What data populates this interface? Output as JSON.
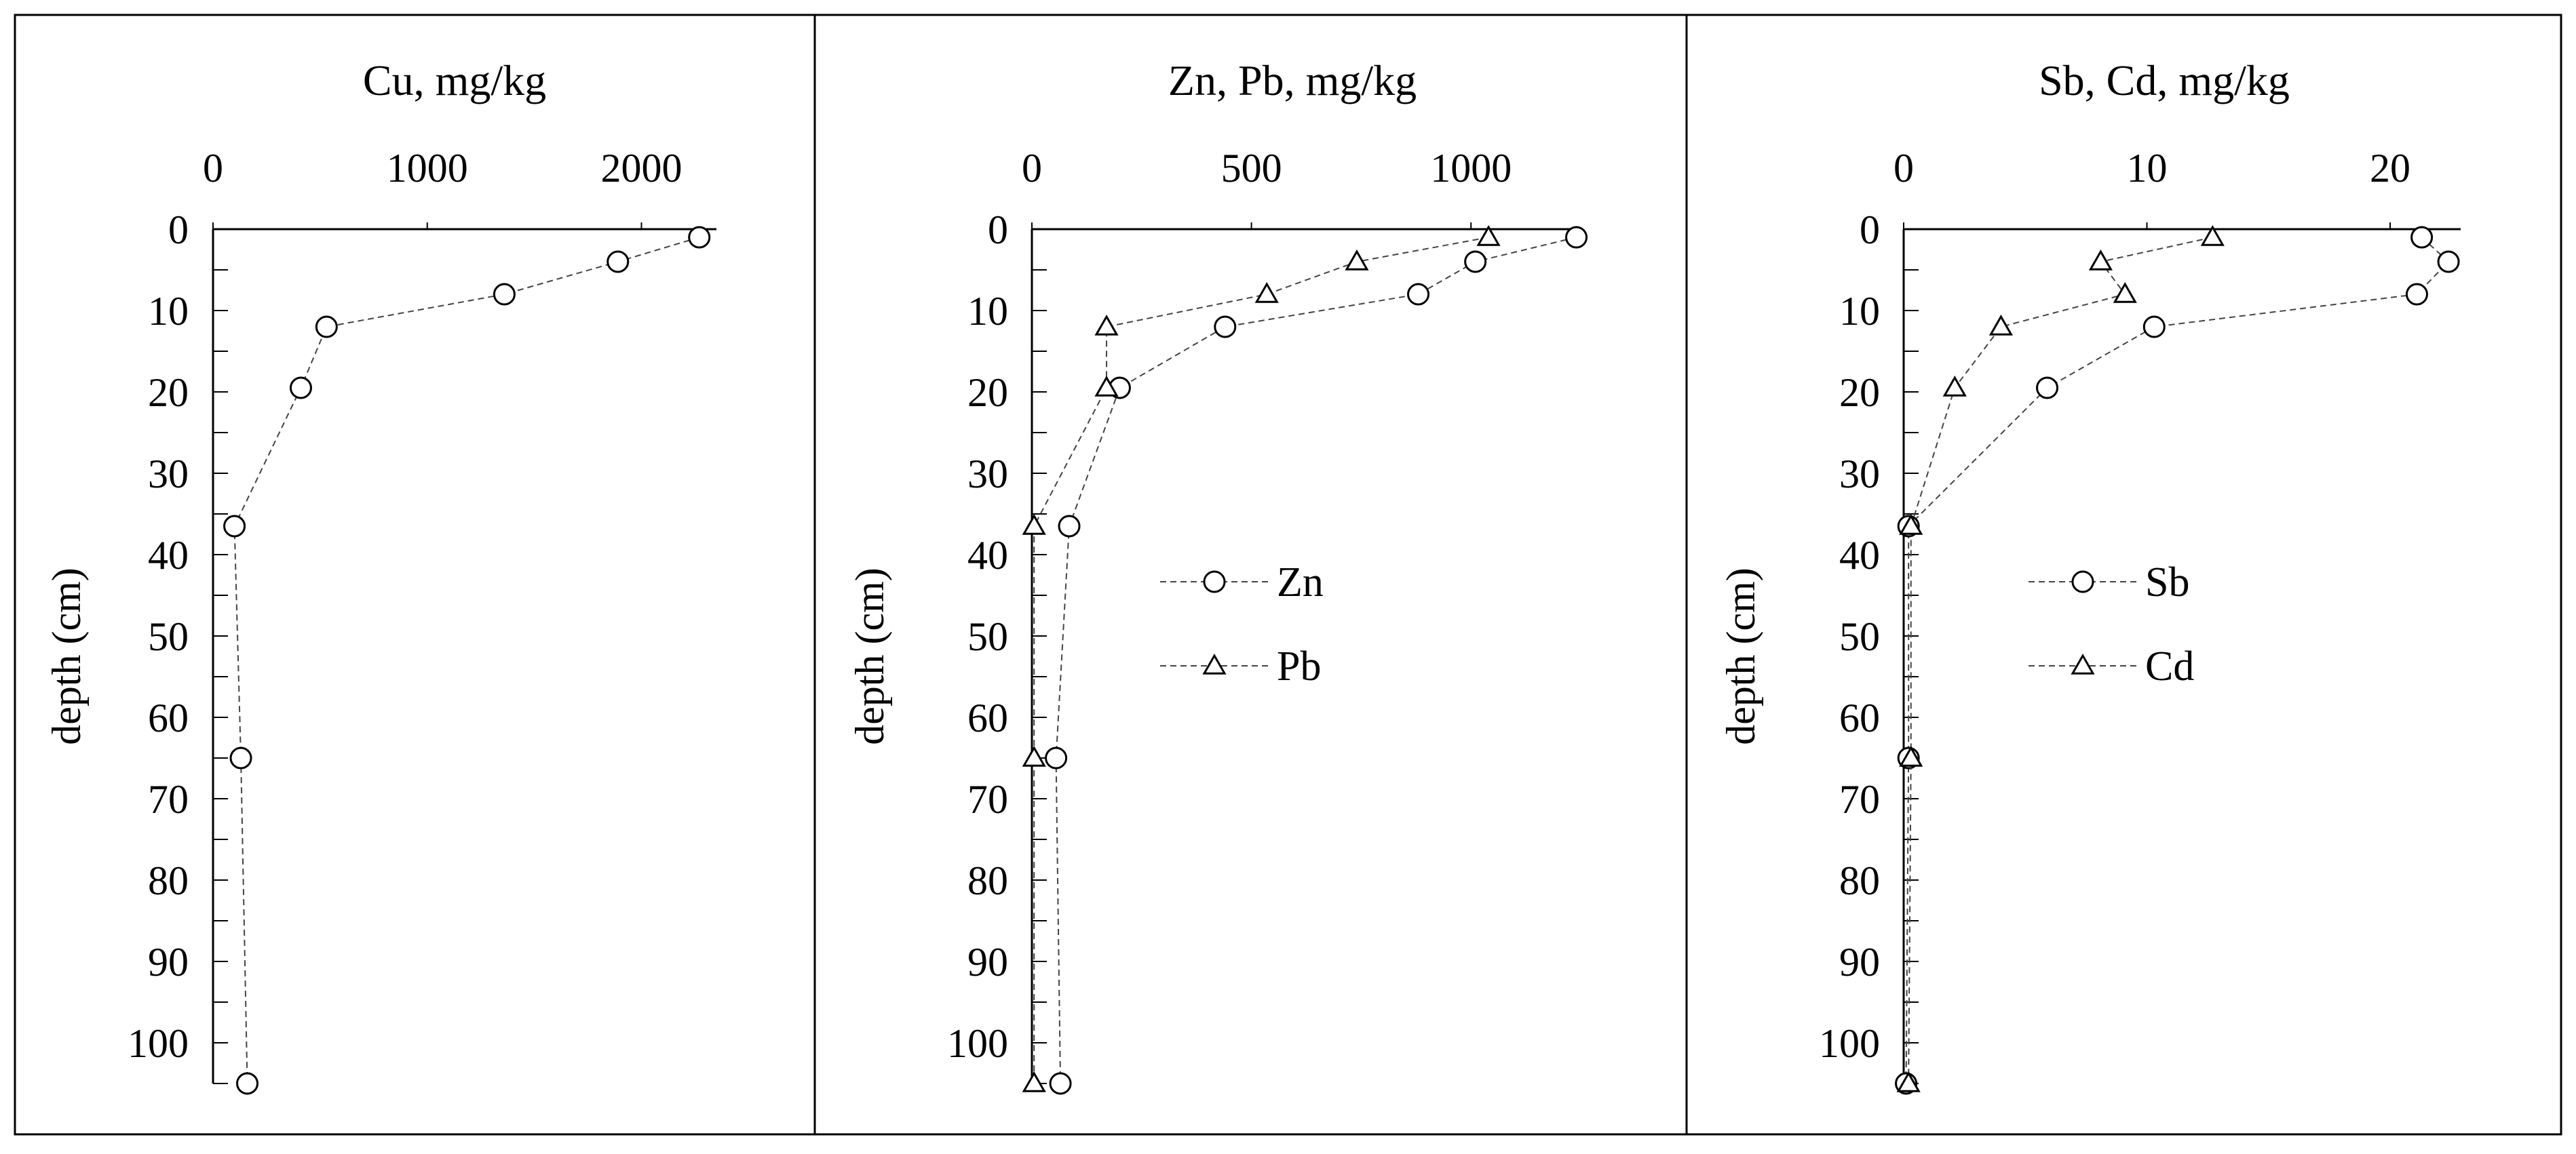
{
  "chart_data": [
    {
      "type": "line",
      "title": "Cu, mg/kg",
      "xlabel": "Cu, mg/kg",
      "ylabel": "depth (cm)",
      "xlim": [
        0,
        2350
      ],
      "ylim": [
        0,
        105
      ],
      "xticks": [
        0,
        1000,
        2000
      ],
      "yticks": [
        0,
        10,
        20,
        30,
        40,
        50,
        60,
        70,
        80,
        90,
        100
      ],
      "x_axis_position": "top",
      "y_reversed": true,
      "grid": false,
      "legend": null,
      "series": [
        {
          "marker": "circle",
          "points": [
            [
              2270,
              1
            ],
            [
              1890,
              4
            ],
            [
              1360,
              8
            ],
            [
              530,
              12
            ],
            [
              410,
              19.5
            ],
            [
              100,
              36.5
            ],
            [
              130,
              65
            ],
            [
              160,
              105
            ]
          ]
        }
      ]
    },
    {
      "type": "line",
      "title": "Zn, Pb, mg/kg",
      "xlabel": "Zn, Pb, mg/kg",
      "ylabel": "depth (cm)",
      "xlim": [
        0,
        1250
      ],
      "ylim": [
        0,
        105
      ],
      "xticks": [
        0,
        500,
        1000
      ],
      "yticks": [
        0,
        10,
        20,
        30,
        40,
        50,
        60,
        70,
        80,
        90,
        100
      ],
      "x_axis_position": "top",
      "y_reversed": true,
      "grid": false,
      "legend": "center-right",
      "series": [
        {
          "name": "Zn",
          "marker": "circle",
          "points": [
            [
              1240,
              1
            ],
            [
              1010,
              4
            ],
            [
              880,
              8
            ],
            [
              440,
              12
            ],
            [
              200,
              19.5
            ],
            [
              85,
              36.5
            ],
            [
              55,
              65
            ],
            [
              65,
              105
            ]
          ]
        },
        {
          "name": "Pb",
          "marker": "triangle",
          "points": [
            [
              1040,
              1
            ],
            [
              740,
              4
            ],
            [
              535,
              8
            ],
            [
              170,
              12
            ],
            [
              170,
              19.5
            ],
            [
              5,
              36.5
            ],
            [
              5,
              65
            ],
            [
              5,
              105
            ]
          ]
        }
      ]
    },
    {
      "type": "line",
      "title": "Sb, Cd, mg/kg",
      "xlabel": "Sb, Cd, mg/kg",
      "ylabel": "depth (cm)",
      "xlim": [
        0,
        22.9
      ],
      "ylim": [
        0,
        105
      ],
      "xticks": [
        0,
        10,
        20
      ],
      "yticks": [
        0,
        10,
        20,
        30,
        40,
        50,
        60,
        70,
        80,
        90,
        100
      ],
      "x_axis_position": "top",
      "y_reversed": true,
      "grid": false,
      "legend": "center-right",
      "series": [
        {
          "name": "Sb",
          "marker": "circle",
          "points": [
            [
              21.3,
              1
            ],
            [
              22.4,
              4
            ],
            [
              21.1,
              8
            ],
            [
              10.3,
              12
            ],
            [
              5.9,
              19.5
            ],
            [
              0.2,
              36.5
            ],
            [
              0.2,
              65
            ],
            [
              0.1,
              105
            ]
          ]
        },
        {
          "name": "Cd",
          "marker": "triangle",
          "points": [
            [
              12.7,
              1
            ],
            [
              8.1,
              4
            ],
            [
              9.1,
              8
            ],
            [
              4.0,
              12
            ],
            [
              2.1,
              19.5
            ],
            [
              0.3,
              36.5
            ],
            [
              0.3,
              65
            ],
            [
              0.2,
              105
            ]
          ]
        }
      ]
    }
  ]
}
